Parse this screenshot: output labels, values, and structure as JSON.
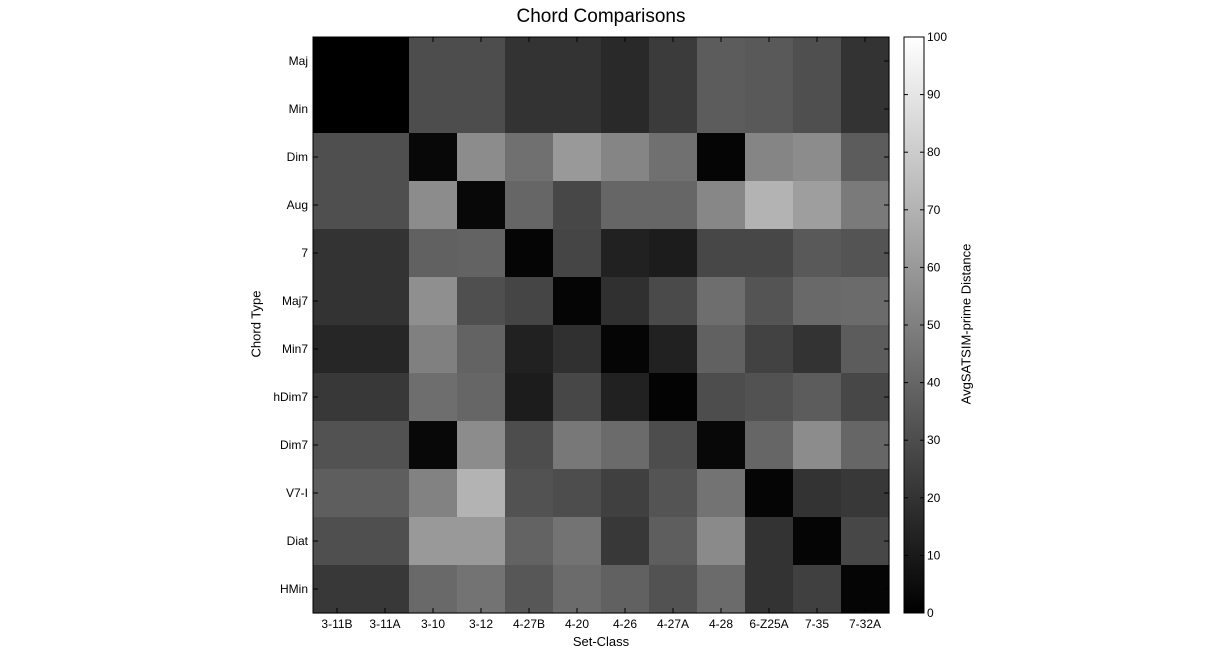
{
  "chart_data": {
    "type": "heatmap",
    "title": "Chord Comparisons",
    "xlabel": "Set-Class",
    "ylabel": "Chord Type",
    "colorbar_label": "AvgSATSIM-prime Distance",
    "colorbar_range": [
      0,
      100
    ],
    "colorbar_ticks": [
      "0",
      "10",
      "20",
      "30",
      "40",
      "50",
      "60",
      "70",
      "80",
      "90",
      "100"
    ],
    "colormap": "gray",
    "columns": [
      "3-11B",
      "3-11A",
      "3-10",
      "3-12",
      "4-27B",
      "4-20",
      "4-26",
      "4-27A",
      "4-28",
      "6-Z25A",
      "7-35",
      "7-32A"
    ],
    "rows": [
      "Maj",
      "Min",
      "Dim",
      "Aug",
      "7",
      "Maj7",
      "Min7",
      "hDim7",
      "Dim7",
      "V7-I",
      "Diat",
      "HMin"
    ],
    "values": [
      [
        0,
        0,
        30,
        30,
        20,
        20,
        16,
        23,
        36,
        35,
        31,
        20
      ],
      [
        0,
        0,
        30,
        30,
        20,
        20,
        16,
        23,
        36,
        35,
        31,
        20
      ],
      [
        31,
        31,
        3,
        55,
        44,
        60,
        52,
        44,
        2,
        52,
        55,
        36
      ],
      [
        31,
        31,
        55,
        3,
        40,
        28,
        40,
        40,
        53,
        70,
        62,
        48
      ],
      [
        20,
        20,
        38,
        39,
        2,
        27,
        13,
        11,
        28,
        28,
        35,
        33
      ],
      [
        20,
        20,
        56,
        31,
        27,
        2,
        19,
        29,
        43,
        33,
        41,
        42
      ],
      [
        15,
        15,
        50,
        39,
        13,
        19,
        2,
        13,
        38,
        26,
        20,
        36
      ],
      [
        22,
        22,
        43,
        40,
        11,
        28,
        13,
        1,
        30,
        32,
        36,
        28
      ],
      [
        32,
        32,
        3,
        55,
        30,
        47,
        42,
        30,
        3,
        40,
        55,
        40
      ],
      [
        37,
        37,
        51,
        70,
        32,
        30,
        25,
        33,
        45,
        2,
        20,
        22
      ],
      [
        31,
        31,
        60,
        60,
        39,
        45,
        22,
        37,
        54,
        20,
        2,
        28
      ],
      [
        22,
        22,
        41,
        45,
        34,
        42,
        38,
        32,
        42,
        20,
        25,
        2
      ]
    ],
    "grid": false,
    "legend": "none"
  }
}
